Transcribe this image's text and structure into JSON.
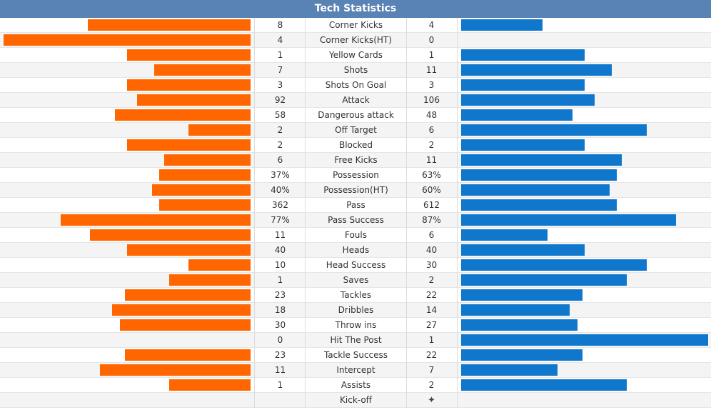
{
  "title": "Tech Statistics",
  "colors": {
    "header": "#5a83b5",
    "home_bar": "#ff6600",
    "away_bar": "#0f77cc"
  },
  "rows": [
    {
      "label": "Corner Kicks",
      "home": "8",
      "away": "4",
      "home_bar": 0.66,
      "away_bar": 0.33
    },
    {
      "label": "Corner Kicks(HT)",
      "home": "4",
      "away": "0",
      "home_bar": 1.0,
      "away_bar": 0.0
    },
    {
      "label": "Yellow Cards",
      "home": "1",
      "away": "1",
      "home_bar": 0.5,
      "away_bar": 0.5
    },
    {
      "label": "Shots",
      "home": "7",
      "away": "11",
      "home_bar": 0.39,
      "away_bar": 0.61
    },
    {
      "label": "Shots On Goal",
      "home": "3",
      "away": "3",
      "home_bar": 0.5,
      "away_bar": 0.5
    },
    {
      "label": "Attack",
      "home": "92",
      "away": "106",
      "home_bar": 0.46,
      "away_bar": 0.54
    },
    {
      "label": "Dangerous attack",
      "home": "58",
      "away": "48",
      "home_bar": 0.55,
      "away_bar": 0.45
    },
    {
      "label": "Off Target",
      "home": "2",
      "away": "6",
      "home_bar": 0.25,
      "away_bar": 0.75
    },
    {
      "label": "Blocked",
      "home": "2",
      "away": "2",
      "home_bar": 0.5,
      "away_bar": 0.5
    },
    {
      "label": "Free Kicks",
      "home": "6",
      "away": "11",
      "home_bar": 0.35,
      "away_bar": 0.65
    },
    {
      "label": "Possession",
      "home": "37%",
      "away": "63%",
      "home_bar": 0.37,
      "away_bar": 0.63
    },
    {
      "label": "Possession(HT)",
      "home": "40%",
      "away": "60%",
      "home_bar": 0.4,
      "away_bar": 0.6
    },
    {
      "label": "Pass",
      "home": "362",
      "away": "612",
      "home_bar": 0.37,
      "away_bar": 0.63
    },
    {
      "label": "Pass Success",
      "home": "77%",
      "away": "87%",
      "home_bar": 0.77,
      "away_bar": 0.87
    },
    {
      "label": "Fouls",
      "home": "11",
      "away": "6",
      "home_bar": 0.65,
      "away_bar": 0.35
    },
    {
      "label": "Heads",
      "home": "40",
      "away": "40",
      "home_bar": 0.5,
      "away_bar": 0.5
    },
    {
      "label": "Head Success",
      "home": "10",
      "away": "30",
      "home_bar": 0.25,
      "away_bar": 0.75
    },
    {
      "label": "Saves",
      "home": "1",
      "away": "2",
      "home_bar": 0.33,
      "away_bar": 0.67
    },
    {
      "label": "Tackles",
      "home": "23",
      "away": "22",
      "home_bar": 0.51,
      "away_bar": 0.49
    },
    {
      "label": "Dribbles",
      "home": "18",
      "away": "14",
      "home_bar": 0.56,
      "away_bar": 0.44
    },
    {
      "label": "Throw ins",
      "home": "30",
      "away": "27",
      "home_bar": 0.53,
      "away_bar": 0.47
    },
    {
      "label": "Hit The Post",
      "home": "0",
      "away": "1",
      "home_bar": 0.0,
      "away_bar": 1.0
    },
    {
      "label": "Tackle Success",
      "home": "23",
      "away": "22",
      "home_bar": 0.51,
      "away_bar": 0.49
    },
    {
      "label": "Intercept",
      "home": "11",
      "away": "7",
      "home_bar": 0.61,
      "away_bar": 0.39
    },
    {
      "label": "Assists",
      "home": "1",
      "away": "2",
      "home_bar": 0.33,
      "away_bar": 0.67
    }
  ],
  "kickoff": {
    "label": "Kick-off",
    "home": "",
    "away_icon": "kickoff-star-icon",
    "away_glyph": "✦"
  }
}
